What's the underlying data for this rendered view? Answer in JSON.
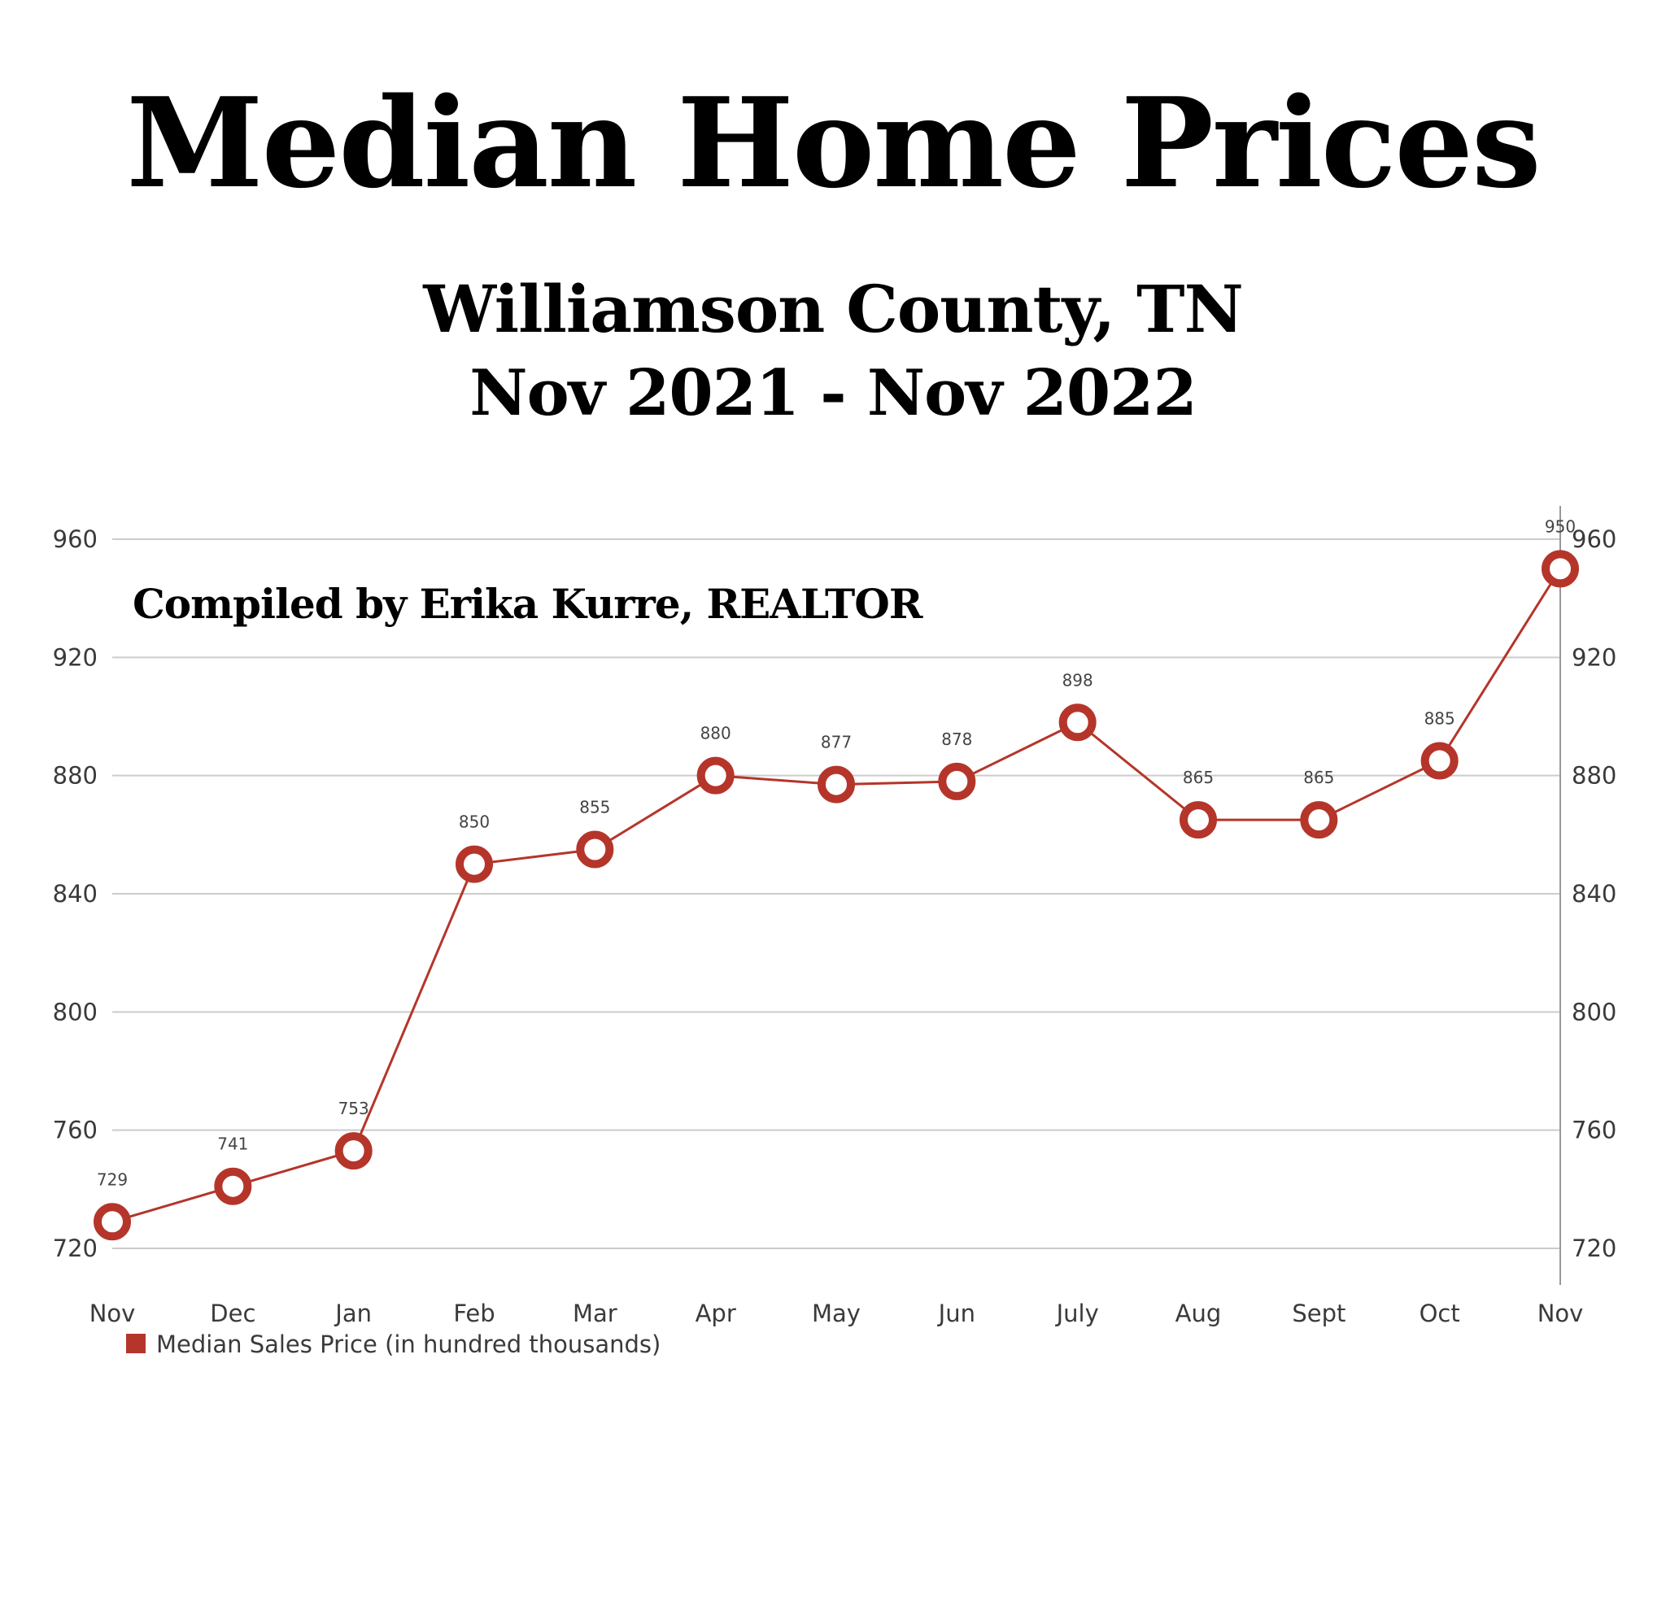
{
  "heading": {
    "title": "Median Home Prices",
    "subtitle": "Williamson County, TN",
    "date_range": "Nov 2021 - Nov 2022"
  },
  "annotation": "Compiled by Erika Kurre, REALTOR",
  "colors": {
    "series": "#b5352a",
    "grid": "#cccccc",
    "axis": "#999999",
    "text": "#3a3a3a"
  },
  "chart_data": {
    "type": "line",
    "categories": [
      "Nov",
      "Dec",
      "Jan",
      "Feb",
      "Mar",
      "Apr",
      "May",
      "Jun",
      "July",
      "Aug",
      "Sept",
      "Oct",
      "Nov"
    ],
    "series": [
      {
        "name": "Median Sales Price (in hundred thousands)",
        "values": [
          729,
          741,
          753,
          850,
          855,
          880,
          877,
          878,
          898,
          865,
          865,
          885,
          950
        ]
      }
    ],
    "ylim": [
      720,
      960
    ],
    "yticks": [
      720,
      760,
      800,
      840,
      880,
      920,
      960
    ],
    "grid": true,
    "legend_position": "bottom-left",
    "data_labels": true,
    "y_axis_sides": "both"
  }
}
